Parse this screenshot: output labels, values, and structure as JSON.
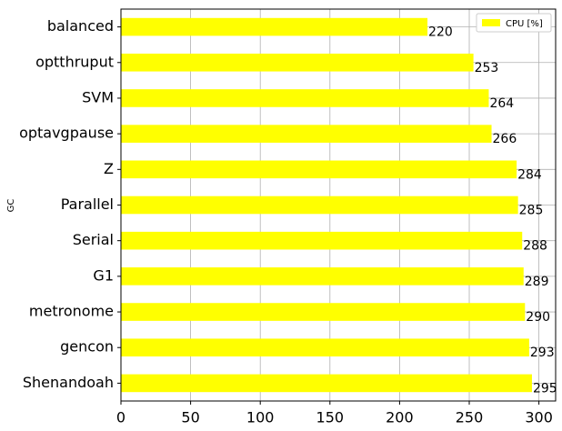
{
  "chart_data": {
    "type": "barh",
    "ylabel": "GC",
    "categories": [
      "balanced",
      "optthruput",
      "SVM",
      "optavgpause",
      "Z",
      "Parallel",
      "Serial",
      "G1",
      "metronome",
      "gencon",
      "Shenandoah"
    ],
    "series": [
      {
        "name": "CPU [%]",
        "color": "#ffff00",
        "values": [
          220,
          253,
          264,
          266,
          284,
          285,
          288,
          289,
          290,
          293,
          295
        ]
      }
    ],
    "xlim": [
      0,
      312
    ],
    "xticks": [
      0,
      50,
      100,
      150,
      200,
      250,
      300
    ],
    "grid": true,
    "legend": "upper right"
  }
}
